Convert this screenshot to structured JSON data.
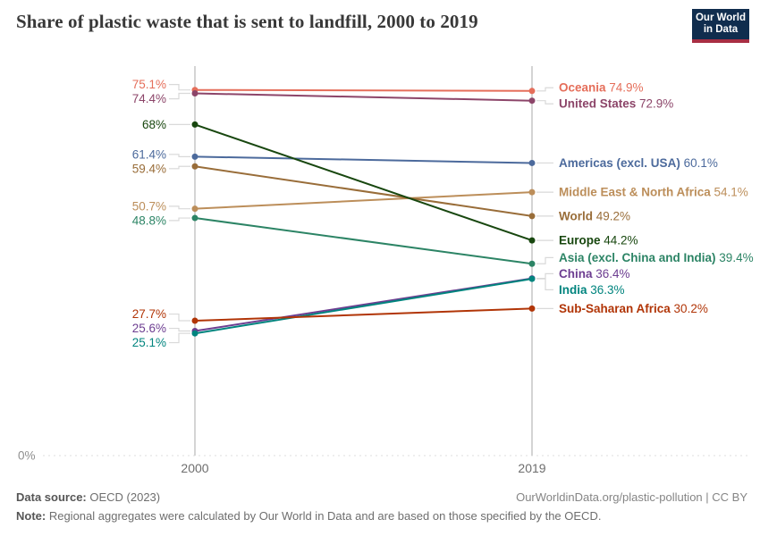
{
  "header": {
    "title": "Share of plastic waste that is sent to landfill, 2000 to 2019",
    "logo_line1": "Our World",
    "logo_line2": "in Data",
    "logo_bg": "#102d4e",
    "logo_accent": "#a82e43"
  },
  "chart_data": {
    "type": "line",
    "subtype": "slope-chart",
    "title": "Share of plastic waste that is sent to landfill, 2000 to 2019",
    "x": [
      2000,
      2019
    ],
    "xticks": [
      "2000",
      "2019"
    ],
    "xlabel": "",
    "ylabel": "",
    "ylim": [
      0,
      80
    ],
    "y_zero_label": "0%",
    "grid": "zero-line-only",
    "legend_position": "right-inline-labels",
    "series": [
      {
        "name": "Oceania",
        "values": [
          75.1,
          74.9
        ],
        "color": "#e56e5a"
      },
      {
        "name": "United States",
        "values": [
          74.4,
          72.9
        ],
        "color": "#8c4569"
      },
      {
        "name": "Americas (excl. USA)",
        "values": [
          61.4,
          60.1
        ],
        "color": "#4c6a9c"
      },
      {
        "name": "Middle East & North Africa",
        "values": [
          50.7,
          54.1
        ],
        "color": "#bc8e5a"
      },
      {
        "name": "World",
        "values": [
          59.4,
          49.2
        ],
        "color": "#996d39"
      },
      {
        "name": "Europe",
        "values": [
          68,
          44.2
        ],
        "color": "#18470f"
      },
      {
        "name": "Asia (excl. China and India)",
        "values": [
          48.8,
          39.4
        ],
        "color": "#2c8465"
      },
      {
        "name": "China",
        "values": [
          25.6,
          36.4
        ],
        "color": "#6d3e91"
      },
      {
        "name": "India",
        "values": [
          25.1,
          36.3
        ],
        "color": "#00847e"
      },
      {
        "name": "Sub-Saharan Africa",
        "values": [
          27.7,
          30.2
        ],
        "color": "#b13507"
      }
    ]
  },
  "colors": {
    "axis_line": "#cfcfcf",
    "grid_dotted": "#dcdcdc",
    "connector": "#d9d9d9",
    "tick_text": "#6e6e6e",
    "zero_label": "#8f8f8f"
  },
  "footer": {
    "source_label": "Data source:",
    "source_value": " OECD (2023)",
    "link": "OurWorldinData.org/plastic-pollution | CC BY",
    "note_label": "Note:",
    "note_value": " Regional aggregates were calculated by Our World in Data and are based on those specified by the OECD."
  }
}
